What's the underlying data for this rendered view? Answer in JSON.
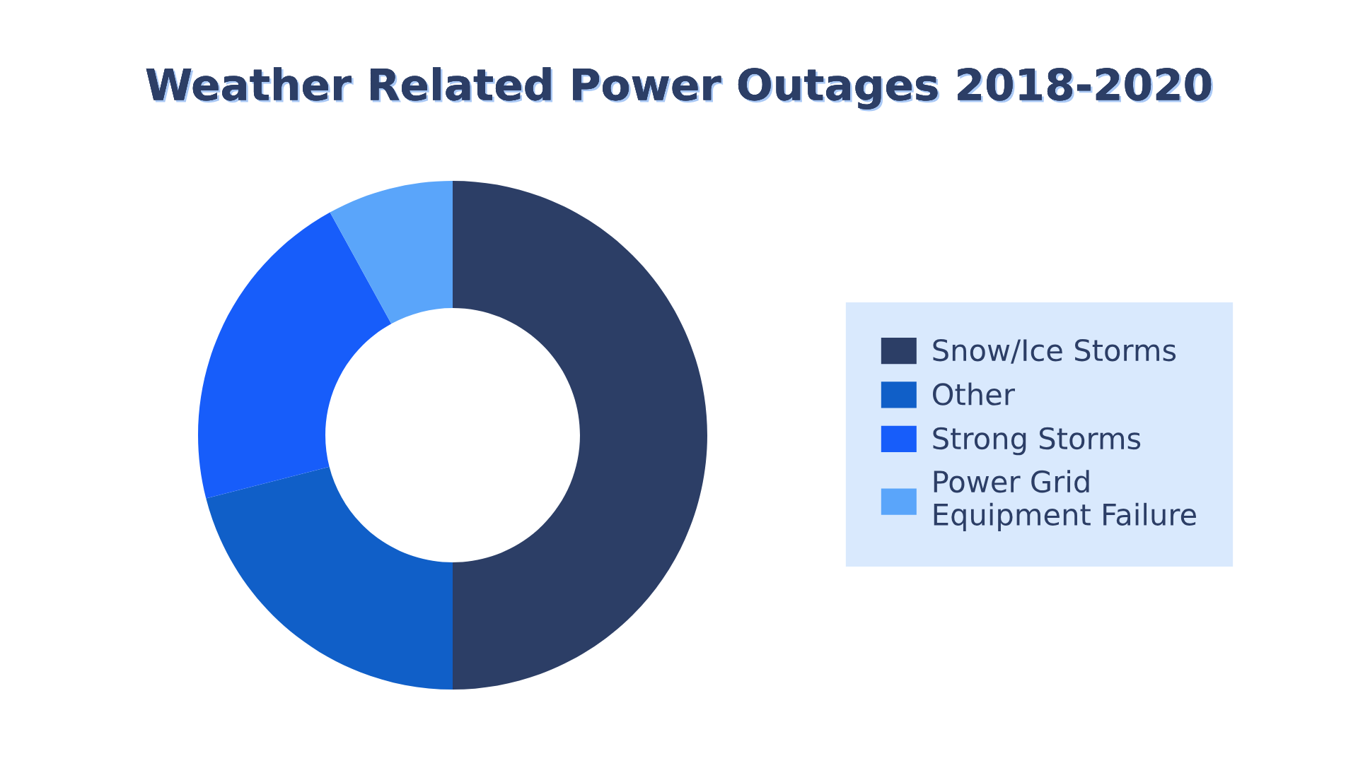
{
  "chart_data": {
    "type": "donut",
    "title": "Weather Related Power Outages 2018-2020",
    "categories": [
      "Snow/Ice Storms",
      "Other",
      "Strong Storms",
      "Power Grid Equipment Failure"
    ],
    "values": [
      50,
      21,
      21,
      8
    ],
    "colors": [
      "#2c3e66",
      "#105fc8",
      "#175dfa",
      "#5aa5fa"
    ],
    "legend": "right"
  }
}
